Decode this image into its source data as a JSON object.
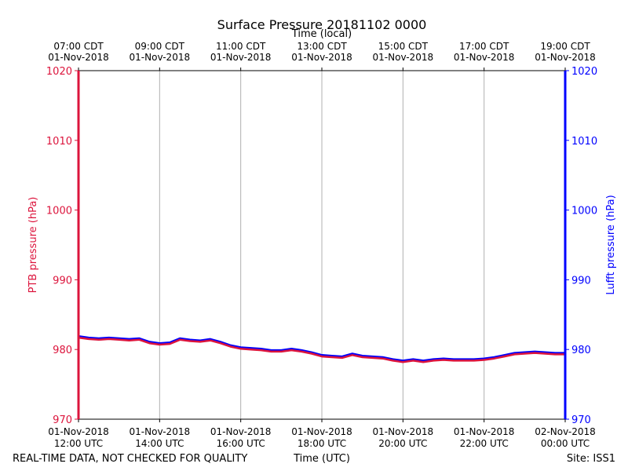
{
  "chart_data": {
    "type": "line",
    "title": "Surface Pressure 20181102 0000",
    "top_axis_label": "Time (local)",
    "xlabel": "Time (UTC)",
    "ylabel_left": "PTB pressure (hPa)",
    "ylabel_right": "Lufft pressure (hPa)",
    "footer_left": "REAL-TIME DATA, NOT CHECKED FOR QUALITY",
    "footer_right": "Site: ISS1",
    "ylim": [
      970,
      1020
    ],
    "yticks": [
      "970",
      "980",
      "990",
      "1000",
      "1010",
      "1020"
    ],
    "xlim_hours": [
      0,
      12
    ],
    "xticks_utc": [
      {
        "h": 0,
        "line1": "01-Nov-2018",
        "line2": "12:00 UTC"
      },
      {
        "h": 2,
        "line1": "01-Nov-2018",
        "line2": "14:00 UTC"
      },
      {
        "h": 4,
        "line1": "01-Nov-2018",
        "line2": "16:00 UTC"
      },
      {
        "h": 6,
        "line1": "01-Nov-2018",
        "line2": "18:00 UTC"
      },
      {
        "h": 8,
        "line1": "01-Nov-2018",
        "line2": "20:00 UTC"
      },
      {
        "h": 10,
        "line1": "01-Nov-2018",
        "line2": "22:00 UTC"
      },
      {
        "h": 12,
        "line1": "02-Nov-2018",
        "line2": "00:00 UTC"
      }
    ],
    "xticks_local": [
      {
        "h": 0,
        "line1": "07:00 CDT",
        "line2": "01-Nov-2018"
      },
      {
        "h": 2,
        "line1": "09:00 CDT",
        "line2": "01-Nov-2018"
      },
      {
        "h": 4,
        "line1": "11:00 CDT",
        "line2": "01-Nov-2018"
      },
      {
        "h": 6,
        "line1": "13:00 CDT",
        "line2": "01-Nov-2018"
      },
      {
        "h": 8,
        "line1": "15:00 CDT",
        "line2": "01-Nov-2018"
      },
      {
        "h": 10,
        "line1": "17:00 CDT",
        "line2": "01-Nov-2018"
      },
      {
        "h": 12,
        "line1": "19:00 CDT",
        "line2": "01-Nov-2018"
      }
    ],
    "grid": true,
    "series": [
      {
        "name": "Lufft",
        "color": "#0000ff",
        "x": [
          0,
          0.25,
          0.5,
          0.75,
          1,
          1.25,
          1.5,
          1.75,
          2,
          2.25,
          2.5,
          2.75,
          3,
          3.25,
          3.5,
          3.75,
          4,
          4.25,
          4.5,
          4.75,
          5,
          5.25,
          5.5,
          5.75,
          6,
          6.25,
          6.5,
          6.75,
          7,
          7.25,
          7.5,
          7.75,
          8,
          8.25,
          8.5,
          8.75,
          9,
          9.25,
          9.5,
          9.75,
          10,
          10.25,
          10.5,
          10.75,
          11,
          11.25,
          11.5,
          11.75,
          12
        ],
        "y": [
          981.9,
          981.7,
          981.6,
          981.7,
          981.6,
          981.5,
          981.6,
          981.1,
          980.9,
          981.0,
          981.6,
          981.4,
          981.3,
          981.5,
          981.1,
          980.6,
          980.3,
          980.2,
          980.1,
          979.9,
          979.9,
          980.1,
          979.9,
          979.6,
          979.2,
          979.1,
          979.0,
          979.4,
          979.1,
          979.0,
          978.9,
          978.6,
          978.4,
          978.6,
          978.4,
          978.6,
          978.7,
          978.6,
          978.6,
          978.6,
          978.7,
          978.9,
          979.2,
          979.5,
          979.6,
          979.7,
          979.6,
          979.5,
          979.5
        ]
      },
      {
        "name": "PTB",
        "color": "#dc143c",
        "x": [
          0,
          0.25,
          0.5,
          0.75,
          1,
          1.25,
          1.5,
          1.75,
          2,
          2.25,
          2.5,
          2.75,
          3,
          3.25,
          3.5,
          3.75,
          4,
          4.25,
          4.5,
          4.75,
          5,
          5.25,
          5.5,
          5.75,
          6,
          6.25,
          6.5,
          6.75,
          7,
          7.25,
          7.5,
          7.75,
          8,
          8.25,
          8.5,
          8.75,
          9,
          9.25,
          9.5,
          9.75,
          10,
          10.25,
          10.5,
          10.75,
          11,
          11.25,
          11.5,
          11.75,
          12
        ],
        "y": [
          981.7,
          981.5,
          981.4,
          981.5,
          981.4,
          981.3,
          981.4,
          980.9,
          980.7,
          980.8,
          981.4,
          981.2,
          981.1,
          981.3,
          980.9,
          980.4,
          980.1,
          980.0,
          979.9,
          979.7,
          979.7,
          979.9,
          979.7,
          979.4,
          979.0,
          978.9,
          978.8,
          979.2,
          978.9,
          978.8,
          978.7,
          978.4,
          978.2,
          978.4,
          978.2,
          978.4,
          978.5,
          978.4,
          978.4,
          978.4,
          978.5,
          978.7,
          979.0,
          979.3,
          979.4,
          979.5,
          979.4,
          979.3,
          979.3
        ]
      }
    ],
    "colors": {
      "left_axis": "#dc143c",
      "right_axis": "#0000ff",
      "grid": "#b0b0b0"
    }
  }
}
